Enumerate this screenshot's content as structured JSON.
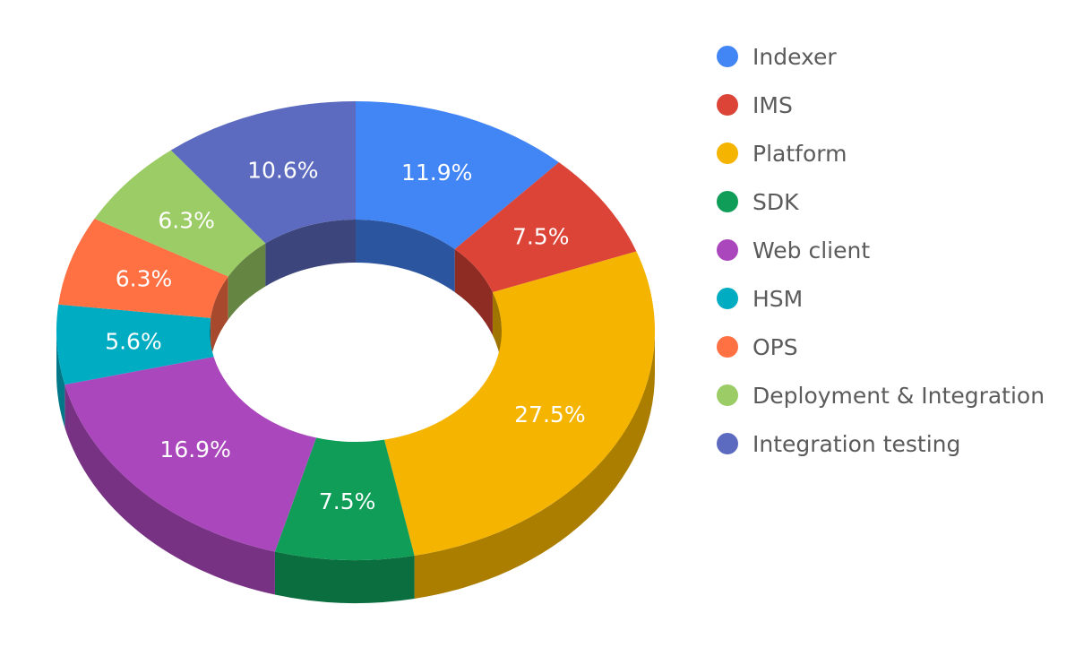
{
  "chart_data": {
    "type": "pie",
    "variant": "3d-donut",
    "legend_position": "right",
    "slices": [
      {
        "name": "Indexer",
        "value": 11.9,
        "label": "11.9%",
        "color": "#4285f4"
      },
      {
        "name": "IMS",
        "value": 7.5,
        "label": "7.5%",
        "color": "#db4437"
      },
      {
        "name": "Platform",
        "value": 27.5,
        "label": "27.5%",
        "color": "#f4b400"
      },
      {
        "name": "SDK",
        "value": 7.5,
        "label": "7.5%",
        "color": "#0f9d58"
      },
      {
        "name": "Web client",
        "value": 16.9,
        "label": "16.9%",
        "color": "#ab47bc"
      },
      {
        "name": "HSM",
        "value": 5.6,
        "label": "5.6%",
        "color": "#00acc1"
      },
      {
        "name": "OPS",
        "value": 6.3,
        "label": "6.3%",
        "color": "#ff7043"
      },
      {
        "name": "Deployment & Integration",
        "value": 6.3,
        "label": "6.3%",
        "color": "#9ccc65"
      },
      {
        "name": "Integration testing",
        "value": 10.6,
        "label": "10.6%",
        "color": "#5c6bc0"
      }
    ]
  }
}
